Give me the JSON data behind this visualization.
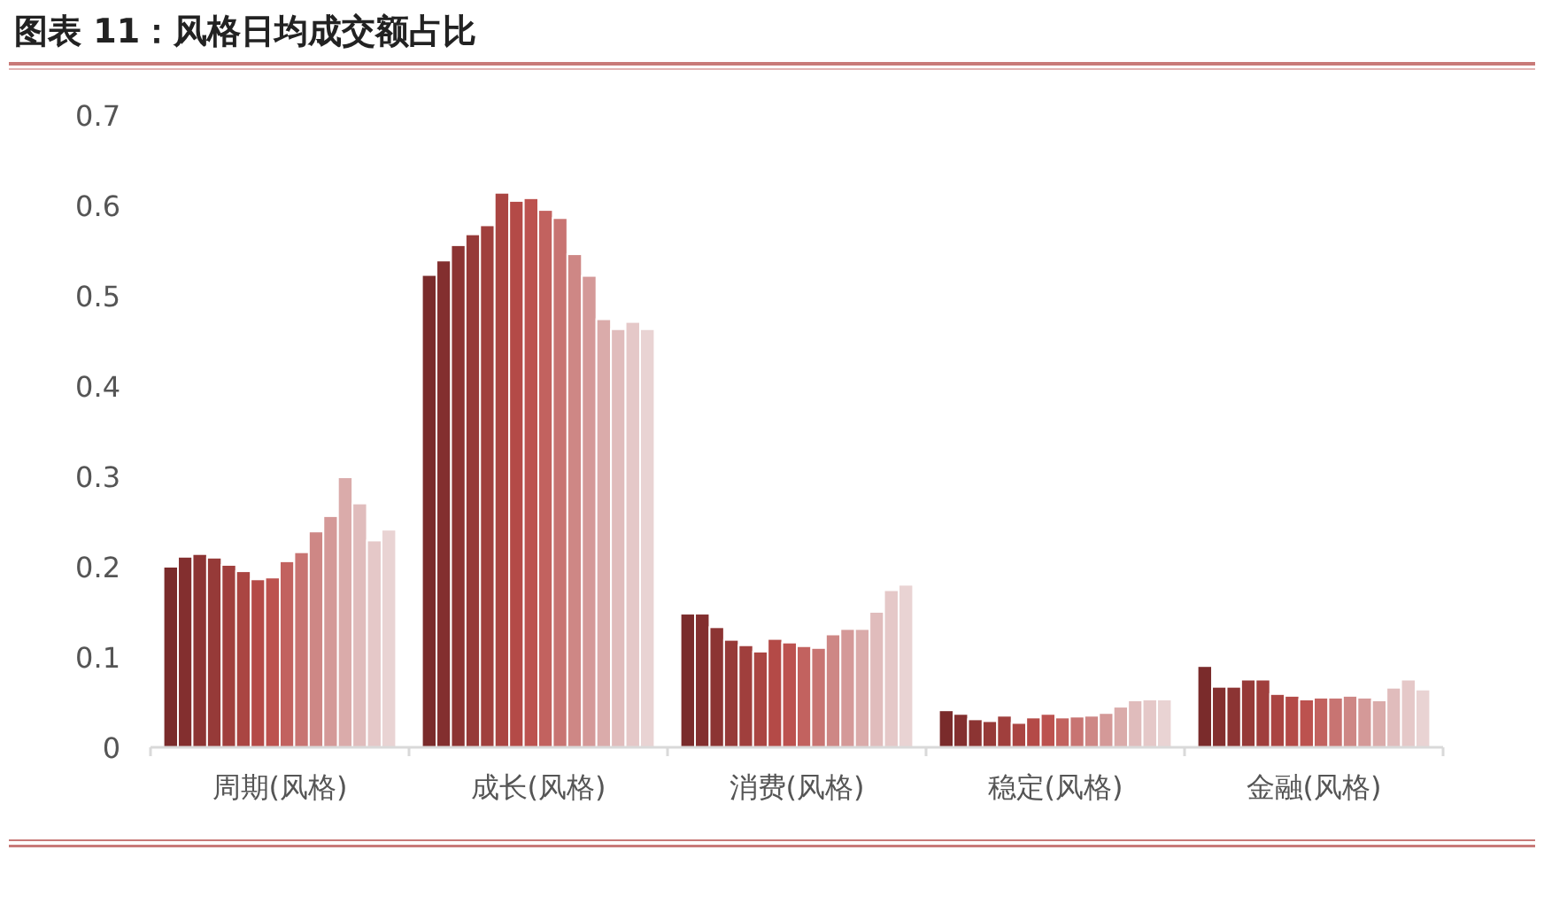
{
  "chart_data": {
    "type": "bar",
    "title": "图表 11：风格日均成交额占比",
    "categories": [
      "周期(风格)",
      "成长(风格)",
      "消费(风格)",
      "稳定(风格)",
      "金融(风格)"
    ],
    "ylim": [
      0,
      0.7
    ],
    "yticks": [
      0,
      0.1,
      0.2,
      0.3,
      0.4,
      0.5,
      0.6,
      0.7
    ],
    "series": [
      {
        "color": "#7a2b2b",
        "values": [
          0.2,
          0.523,
          0.148,
          0.041,
          0.09
        ]
      },
      {
        "color": "#832f2f",
        "values": [
          0.211,
          0.539,
          0.148,
          0.037,
          0.067
        ]
      },
      {
        "color": "#8c3433",
        "values": [
          0.214,
          0.556,
          0.133,
          0.031,
          0.067
        ]
      },
      {
        "color": "#963a38",
        "values": [
          0.21,
          0.568,
          0.119,
          0.029,
          0.075
        ]
      },
      {
        "color": "#a03f3d",
        "values": [
          0.202,
          0.578,
          0.113,
          0.035,
          0.075
        ]
      },
      {
        "color": "#aa4542",
        "values": [
          0.195,
          0.614,
          0.106,
          0.027,
          0.059
        ]
      },
      {
        "color": "#b44a47",
        "values": [
          0.186,
          0.605,
          0.12,
          0.033,
          0.057
        ]
      },
      {
        "color": "#bc524f",
        "values": [
          0.188,
          0.608,
          0.116,
          0.037,
          0.053
        ]
      },
      {
        "color": "#c2625f",
        "values": [
          0.206,
          0.595,
          0.112,
          0.033,
          0.055
        ]
      },
      {
        "color": "#c87472",
        "values": [
          0.216,
          0.586,
          0.11,
          0.034,
          0.055
        ]
      },
      {
        "color": "#ce8785",
        "values": [
          0.239,
          0.546,
          0.125,
          0.035,
          0.057
        ]
      },
      {
        "color": "#d49998",
        "values": [
          0.256,
          0.522,
          0.131,
          0.038,
          0.055
        ]
      },
      {
        "color": "#daabaa",
        "values": [
          0.299,
          0.474,
          0.131,
          0.045,
          0.052
        ]
      },
      {
        "color": "#e0bcbc",
        "values": [
          0.27,
          0.463,
          0.15,
          0.052,
          0.066
        ]
      },
      {
        "color": "#e5c8c8",
        "values": [
          0.229,
          0.471,
          0.174,
          0.053,
          0.075
        ]
      },
      {
        "color": "#e9d3d3",
        "values": [
          0.241,
          0.463,
          0.18,
          0.053,
          0.064
        ]
      }
    ]
  }
}
